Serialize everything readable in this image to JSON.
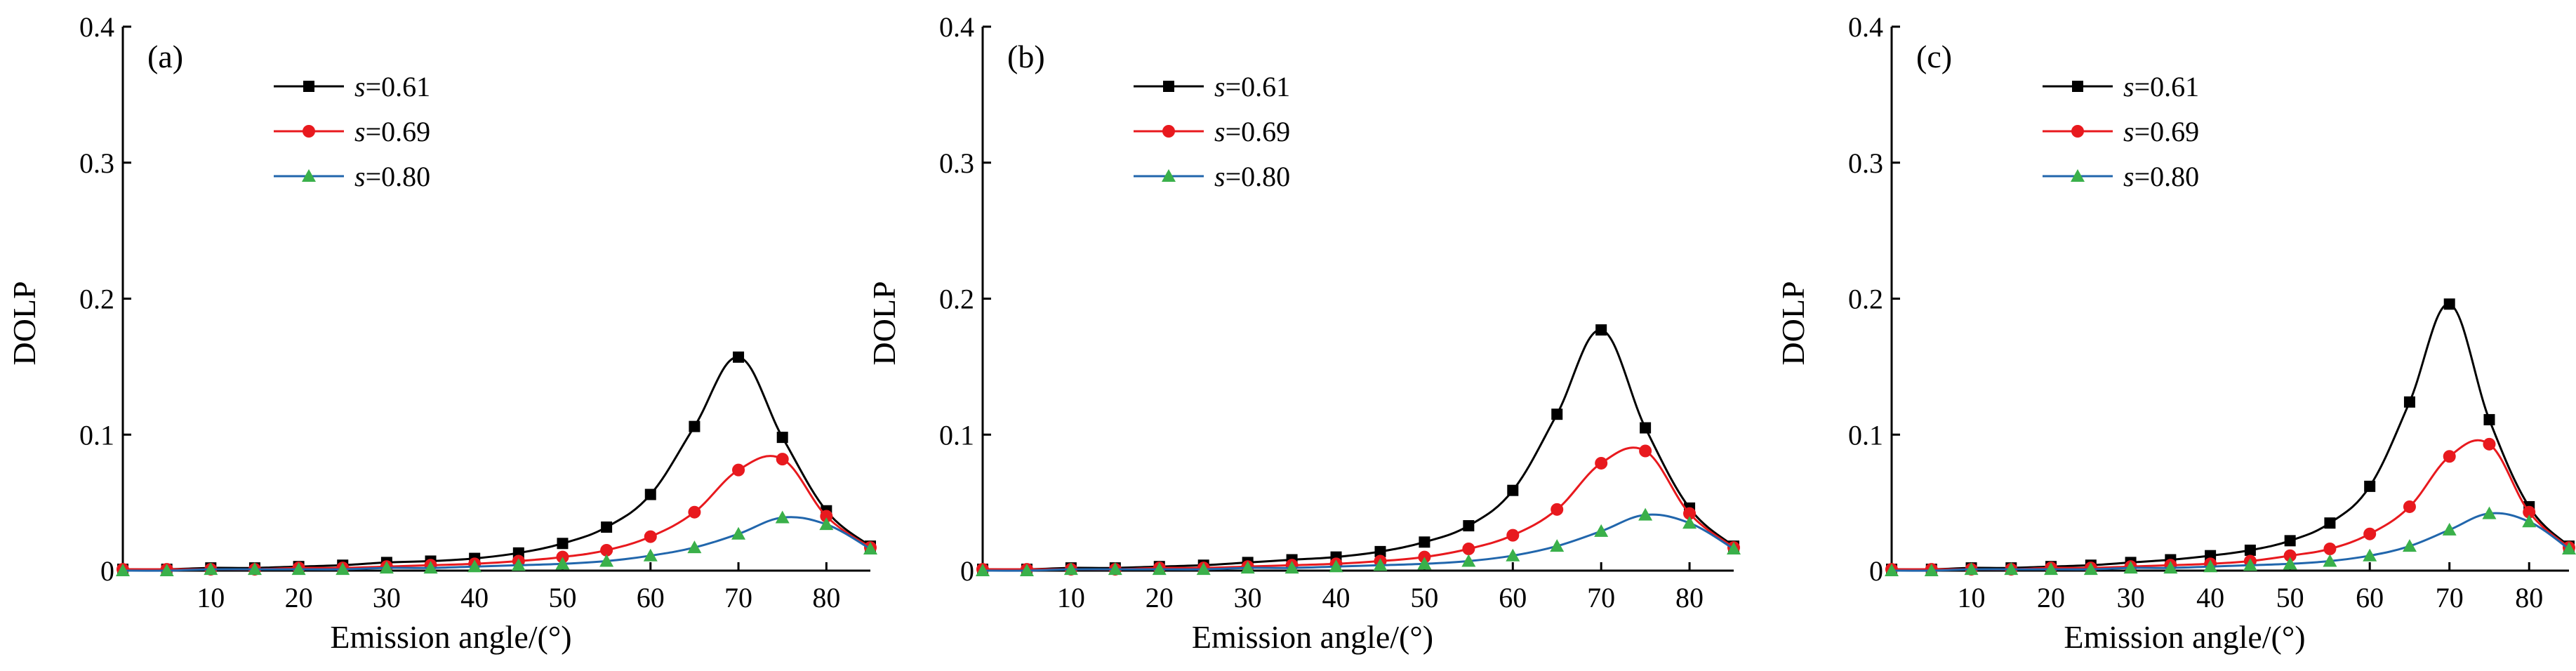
{
  "chart_data": [
    {
      "type": "line",
      "panel_label": "(a)",
      "xlabel": "Emission angle/(°)",
      "ylabel": "DOLP",
      "xlim": [
        0,
        85
      ],
      "ylim": [
        0,
        0.4
      ],
      "xticks": [
        10,
        20,
        30,
        40,
        50,
        60,
        70,
        80
      ],
      "yticks": [
        0,
        0.1,
        0.2,
        0.3,
        0.4
      ],
      "ytick_labels": [
        "0",
        "0.1",
        "0.2",
        "0.3",
        "0.4"
      ],
      "legend_position": "top-left",
      "x": [
        0,
        5,
        10,
        15,
        20,
        25,
        30,
        35,
        40,
        45,
        50,
        55,
        60,
        65,
        70,
        75,
        80,
        85
      ],
      "series": [
        {
          "name": "s=0.61",
          "name_prefix": "s",
          "name_value": "=0.61",
          "color": "#000000",
          "marker": "square",
          "values": [
            0.001,
            0.001,
            0.002,
            0.002,
            0.003,
            0.004,
            0.006,
            0.007,
            0.009,
            0.013,
            0.02,
            0.032,
            0.056,
            0.106,
            0.157,
            0.098,
            0.044,
            0.018
          ]
        },
        {
          "name": "s=0.69",
          "name_prefix": "s",
          "name_value": "=0.69",
          "color": "#e8191e",
          "marker": "circle",
          "values": [
            0.001,
            0.001,
            0.001,
            0.001,
            0.002,
            0.002,
            0.003,
            0.004,
            0.005,
            0.007,
            0.01,
            0.015,
            0.025,
            0.043,
            0.074,
            0.082,
            0.04,
            0.017
          ]
        },
        {
          "name": "s=0.80",
          "name_prefix": "s",
          "name_value": "=0.80",
          "color": "#3ab04a",
          "line_color": "#2166ac",
          "marker": "triangle",
          "values": [
            0.0,
            0.0,
            0.001,
            0.001,
            0.001,
            0.001,
            0.002,
            0.002,
            0.003,
            0.004,
            0.005,
            0.007,
            0.011,
            0.017,
            0.027,
            0.039,
            0.034,
            0.016
          ]
        }
      ]
    },
    {
      "type": "line",
      "panel_label": "(b)",
      "xlabel": "Emission angle/(°)",
      "ylabel": "DOLP",
      "xlim": [
        0,
        85
      ],
      "ylim": [
        0,
        0.4
      ],
      "xticks": [
        10,
        20,
        30,
        40,
        50,
        60,
        70,
        80
      ],
      "yticks": [
        0,
        0.1,
        0.2,
        0.3,
        0.4
      ],
      "ytick_labels": [
        "0",
        "0.1",
        "0.2",
        "0.3",
        "0.4"
      ],
      "legend_position": "top-left",
      "x": [
        0,
        5,
        10,
        15,
        20,
        25,
        30,
        35,
        40,
        45,
        50,
        55,
        60,
        65,
        70,
        75,
        80,
        85
      ],
      "series": [
        {
          "name": "s=0.61",
          "name_prefix": "s",
          "name_value": "=0.61",
          "color": "#000000",
          "marker": "square",
          "values": [
            0.001,
            0.001,
            0.002,
            0.002,
            0.003,
            0.004,
            0.006,
            0.008,
            0.01,
            0.014,
            0.021,
            0.033,
            0.059,
            0.115,
            0.177,
            0.105,
            0.046,
            0.018
          ]
        },
        {
          "name": "s=0.69",
          "name_prefix": "s",
          "name_value": "=0.69",
          "color": "#e8191e",
          "marker": "circle",
          "values": [
            0.001,
            0.001,
            0.001,
            0.001,
            0.002,
            0.002,
            0.003,
            0.004,
            0.005,
            0.007,
            0.01,
            0.016,
            0.026,
            0.045,
            0.079,
            0.088,
            0.042,
            0.017
          ]
        },
        {
          "name": "s=0.80",
          "name_prefix": "s",
          "name_value": "=0.80",
          "color": "#3ab04a",
          "line_color": "#2166ac",
          "marker": "triangle",
          "values": [
            0.0,
            0.0,
            0.001,
            0.001,
            0.001,
            0.001,
            0.002,
            0.002,
            0.003,
            0.004,
            0.005,
            0.007,
            0.011,
            0.018,
            0.029,
            0.041,
            0.035,
            0.016
          ]
        }
      ]
    },
    {
      "type": "line",
      "panel_label": "(c)",
      "xlabel": "Emission angle/(°)",
      "ylabel": "DOLP",
      "xlim": [
        0,
        85
      ],
      "ylim": [
        0,
        0.4
      ],
      "xticks": [
        10,
        20,
        30,
        40,
        50,
        60,
        70,
        80
      ],
      "yticks": [
        0,
        0.1,
        0.2,
        0.3,
        0.4
      ],
      "ytick_labels": [
        "0",
        "0.1",
        "0.2",
        "0.3",
        "0.4"
      ],
      "legend_position": "top-left",
      "x": [
        0,
        5,
        10,
        15,
        20,
        25,
        30,
        35,
        40,
        45,
        50,
        55,
        60,
        65,
        70,
        75,
        80,
        85
      ],
      "series": [
        {
          "name": "s=0.61",
          "name_prefix": "s",
          "name_value": "=0.61",
          "color": "#000000",
          "marker": "square",
          "values": [
            0.001,
            0.001,
            0.002,
            0.002,
            0.003,
            0.004,
            0.006,
            0.008,
            0.011,
            0.015,
            0.022,
            0.035,
            0.062,
            0.124,
            0.196,
            0.111,
            0.047,
            0.018
          ]
        },
        {
          "name": "s=0.69",
          "name_prefix": "s",
          "name_value": "=0.69",
          "color": "#e8191e",
          "marker": "circle",
          "values": [
            0.001,
            0.001,
            0.001,
            0.001,
            0.002,
            0.002,
            0.003,
            0.004,
            0.005,
            0.007,
            0.011,
            0.016,
            0.027,
            0.047,
            0.084,
            0.093,
            0.043,
            0.017
          ]
        },
        {
          "name": "s=0.80",
          "name_prefix": "s",
          "name_value": "=0.80",
          "color": "#3ab04a",
          "line_color": "#2166ac",
          "marker": "triangle",
          "values": [
            0.0,
            0.0,
            0.001,
            0.001,
            0.001,
            0.001,
            0.002,
            0.002,
            0.003,
            0.004,
            0.005,
            0.007,
            0.011,
            0.018,
            0.03,
            0.042,
            0.036,
            0.016
          ]
        }
      ]
    }
  ]
}
